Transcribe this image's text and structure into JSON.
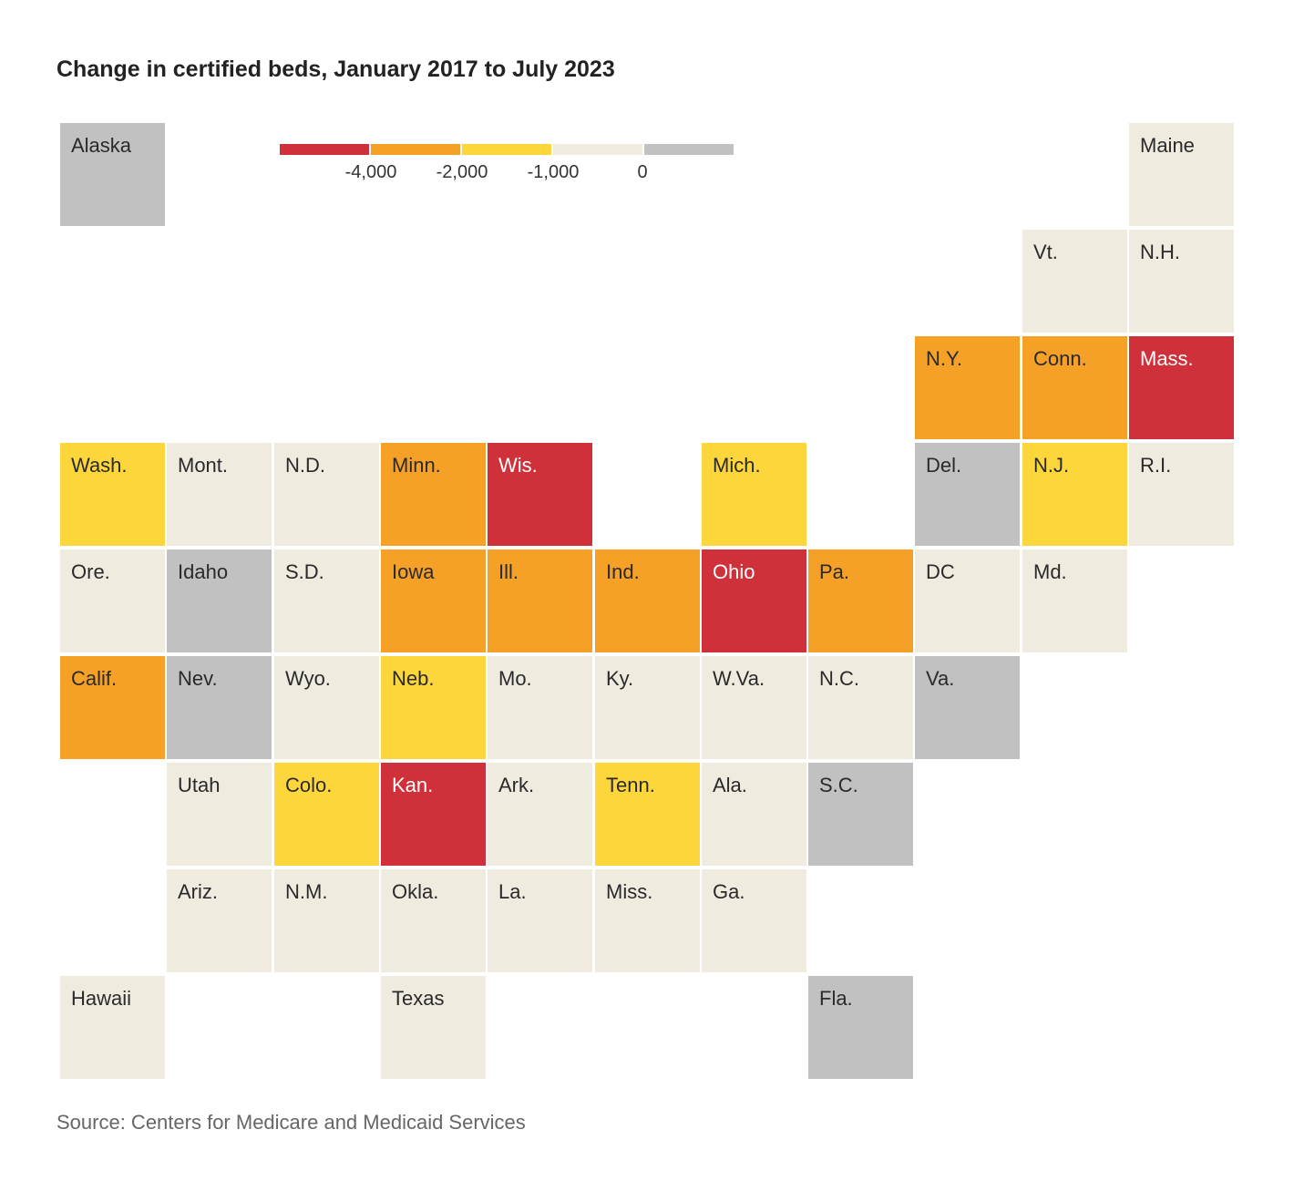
{
  "title": "Change in certified beds, January 2017 to July 2023",
  "source": "Source: Centers for Medicare and Medicaid Services",
  "legend": {
    "ticks": [
      "-4,000",
      "-2,000",
      "-1,000",
      "0"
    ],
    "bins": [
      {
        "category": "lt_-4000",
        "color": "#d0303a"
      },
      {
        "category": "-4000_to_-2000",
        "color": "#f5a128"
      },
      {
        "category": "-2000_to_-1000",
        "color": "#fdd63c"
      },
      {
        "category": "-1000_to_0",
        "color": "#efebdf"
      },
      {
        "category": "gt_0",
        "color": "#c1c1c1"
      }
    ]
  },
  "chart_data": {
    "type": "tile-map",
    "title": "Change in certified beds, January 2017 to July 2023",
    "states": [
      {
        "name": "Alaska",
        "row": 0,
        "col": 0,
        "category": "gt_0"
      },
      {
        "name": "Maine",
        "row": 0,
        "col": 10,
        "category": "-1000_to_0"
      },
      {
        "name": "Vt.",
        "row": 1,
        "col": 9,
        "category": "-1000_to_0"
      },
      {
        "name": "N.H.",
        "row": 1,
        "col": 10,
        "category": "-1000_to_0"
      },
      {
        "name": "N.Y.",
        "row": 2,
        "col": 8,
        "category": "-4000_to_-2000"
      },
      {
        "name": "Conn.",
        "row": 2,
        "col": 9,
        "category": "-4000_to_-2000"
      },
      {
        "name": "Mass.",
        "row": 2,
        "col": 10,
        "category": "lt_-4000"
      },
      {
        "name": "Wash.",
        "row": 3,
        "col": 0,
        "category": "-2000_to_-1000"
      },
      {
        "name": "Mont.",
        "row": 3,
        "col": 1,
        "category": "-1000_to_0"
      },
      {
        "name": "N.D.",
        "row": 3,
        "col": 2,
        "category": "-1000_to_0"
      },
      {
        "name": "Minn.",
        "row": 3,
        "col": 3,
        "category": "-4000_to_-2000"
      },
      {
        "name": "Wis.",
        "row": 3,
        "col": 4,
        "category": "lt_-4000"
      },
      {
        "name": "Mich.",
        "row": 3,
        "col": 6,
        "category": "-2000_to_-1000"
      },
      {
        "name": "Del.",
        "row": 3,
        "col": 8,
        "category": "gt_0"
      },
      {
        "name": "N.J.",
        "row": 3,
        "col": 9,
        "category": "-2000_to_-1000"
      },
      {
        "name": "R.I.",
        "row": 3,
        "col": 10,
        "category": "-1000_to_0"
      },
      {
        "name": "Ore.",
        "row": 4,
        "col": 0,
        "category": "-1000_to_0"
      },
      {
        "name": "Idaho",
        "row": 4,
        "col": 1,
        "category": "gt_0"
      },
      {
        "name": "S.D.",
        "row": 4,
        "col": 2,
        "category": "-1000_to_0"
      },
      {
        "name": "Iowa",
        "row": 4,
        "col": 3,
        "category": "-4000_to_-2000"
      },
      {
        "name": "Ill.",
        "row": 4,
        "col": 4,
        "category": "-4000_to_-2000"
      },
      {
        "name": "Ind.",
        "row": 4,
        "col": 5,
        "category": "-4000_to_-2000"
      },
      {
        "name": "Ohio",
        "row": 4,
        "col": 6,
        "category": "lt_-4000"
      },
      {
        "name": "Pa.",
        "row": 4,
        "col": 7,
        "category": "-4000_to_-2000"
      },
      {
        "name": "DC",
        "row": 4,
        "col": 8,
        "category": "-1000_to_0"
      },
      {
        "name": "Md.",
        "row": 4,
        "col": 9,
        "category": "-1000_to_0"
      },
      {
        "name": "Calif.",
        "row": 5,
        "col": 0,
        "category": "-4000_to_-2000"
      },
      {
        "name": "Nev.",
        "row": 5,
        "col": 1,
        "category": "gt_0"
      },
      {
        "name": "Wyo.",
        "row": 5,
        "col": 2,
        "category": "-1000_to_0"
      },
      {
        "name": "Neb.",
        "row": 5,
        "col": 3,
        "category": "-2000_to_-1000"
      },
      {
        "name": "Mo.",
        "row": 5,
        "col": 4,
        "category": "-1000_to_0"
      },
      {
        "name": "Ky.",
        "row": 5,
        "col": 5,
        "category": "-1000_to_0"
      },
      {
        "name": "W.Va.",
        "row": 5,
        "col": 6,
        "category": "-1000_to_0"
      },
      {
        "name": "N.C.",
        "row": 5,
        "col": 7,
        "category": "-1000_to_0"
      },
      {
        "name": "Va.",
        "row": 5,
        "col": 8,
        "category": "gt_0"
      },
      {
        "name": "Utah",
        "row": 6,
        "col": 1,
        "category": "-1000_to_0"
      },
      {
        "name": "Colo.",
        "row": 6,
        "col": 2,
        "category": "-2000_to_-1000"
      },
      {
        "name": "Kan.",
        "row": 6,
        "col": 3,
        "category": "lt_-4000"
      },
      {
        "name": "Ark.",
        "row": 6,
        "col": 4,
        "category": "-1000_to_0"
      },
      {
        "name": "Tenn.",
        "row": 6,
        "col": 5,
        "category": "-2000_to_-1000"
      },
      {
        "name": "Ala.",
        "row": 6,
        "col": 6,
        "category": "-1000_to_0"
      },
      {
        "name": "S.C.",
        "row": 6,
        "col": 7,
        "category": "gt_0"
      },
      {
        "name": "Ariz.",
        "row": 7,
        "col": 1,
        "category": "-1000_to_0"
      },
      {
        "name": "N.M.",
        "row": 7,
        "col": 2,
        "category": "-1000_to_0"
      },
      {
        "name": "Okla.",
        "row": 7,
        "col": 3,
        "category": "-1000_to_0"
      },
      {
        "name": "La.",
        "row": 7,
        "col": 4,
        "category": "-1000_to_0"
      },
      {
        "name": "Miss.",
        "row": 7,
        "col": 5,
        "category": "-1000_to_0"
      },
      {
        "name": "Ga.",
        "row": 7,
        "col": 6,
        "category": "-1000_to_0"
      },
      {
        "name": "Hawaii",
        "row": 8,
        "col": 0,
        "category": "-1000_to_0"
      },
      {
        "name": "Texas",
        "row": 8,
        "col": 3,
        "category": "-1000_to_0"
      },
      {
        "name": "Fla.",
        "row": 8,
        "col": 7,
        "category": "gt_0"
      }
    ]
  }
}
